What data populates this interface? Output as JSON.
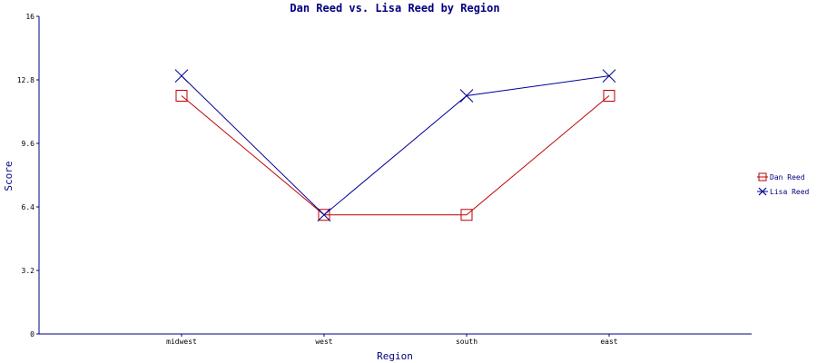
{
  "chart_data": {
    "type": "line",
    "title": "Dan Reed vs. Lisa Reed by Region",
    "xlabel": "Region",
    "ylabel": "Score",
    "categories": [
      "midwest",
      "west",
      "south",
      "east"
    ],
    "ylim": [
      0,
      16
    ],
    "yticks": [
      "0",
      "3.2",
      "6.4",
      "9.6",
      "12.8",
      "16"
    ],
    "grid": false,
    "legend_position": "right",
    "series": [
      {
        "name": "Dan Reed",
        "values": [
          12,
          6,
          6,
          12
        ],
        "color": "#c00000",
        "marker": "square"
      },
      {
        "name": "Lisa Reed",
        "values": [
          13,
          6,
          12,
          13
        ],
        "color": "#000099",
        "marker": "x"
      }
    ]
  }
}
